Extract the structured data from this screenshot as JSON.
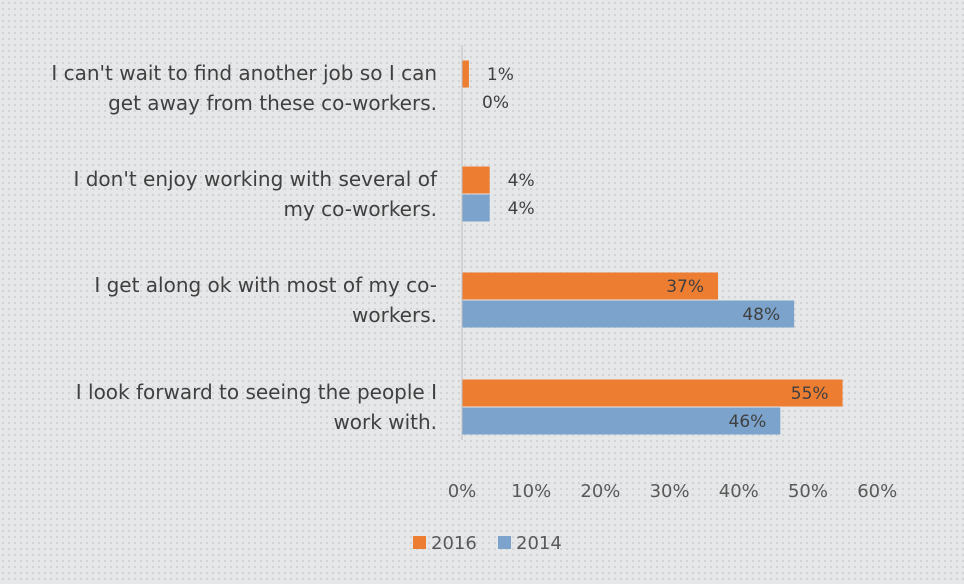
{
  "chart_data": {
    "type": "bar",
    "orientation": "horizontal",
    "categories": [
      [
        "I can't wait to find another job so I can",
        "get away from these co-workers."
      ],
      [
        "I don't enjoy working with several of",
        "my co-workers."
      ],
      [
        "I get along ok with most of my co-",
        "workers."
      ],
      [
        "I look forward to seeing the people I",
        "work with."
      ]
    ],
    "series": [
      {
        "name": "2016",
        "color": "#ed7d31",
        "values": [
          1,
          4,
          37,
          55
        ]
      },
      {
        "name": "2014",
        "color": "#7ba3cc",
        "values": [
          0,
          4,
          48,
          46
        ]
      }
    ],
    "xlim": [
      0,
      60
    ],
    "xticks": [
      0,
      10,
      20,
      30,
      40,
      50,
      60
    ],
    "tick_format": "{v}%",
    "data_label_format": "{v}%",
    "grid": false,
    "legend": "bottom",
    "title": "",
    "xlabel": "",
    "ylabel": ""
  }
}
